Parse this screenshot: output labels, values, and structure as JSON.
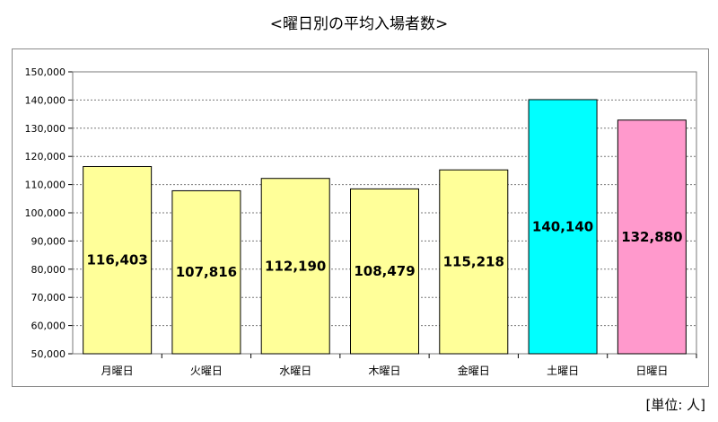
{
  "chart_data": {
    "type": "bar",
    "title": "<曜日別の平均入場者数>",
    "unit_note": "[単位: 人]",
    "categories": [
      "月曜日",
      "火曜日",
      "水曜日",
      "木曜日",
      "金曜日",
      "土曜日",
      "日曜日"
    ],
    "values": [
      116403,
      107816,
      112190,
      108479,
      115218,
      140140,
      132880
    ],
    "value_labels": [
      "116,403",
      "107,816",
      "112,190",
      "108,479",
      "115,218",
      "140,140",
      "132,880"
    ],
    "bar_colors": [
      "#ffff99",
      "#ffff99",
      "#ffff99",
      "#ffff99",
      "#ffff99",
      "#00ffff",
      "#ff99cc"
    ],
    "ylim": [
      50000,
      150000
    ],
    "yticks": [
      50000,
      60000,
      70000,
      80000,
      90000,
      100000,
      110000,
      120000,
      130000,
      140000,
      150000
    ],
    "ytick_labels": [
      "50,000",
      "60,000",
      "70,000",
      "80,000",
      "90,000",
      "100,000",
      "110,000",
      "120,000",
      "130,000",
      "140,000",
      "150,000"
    ],
    "grid": true,
    "legend": false
  }
}
